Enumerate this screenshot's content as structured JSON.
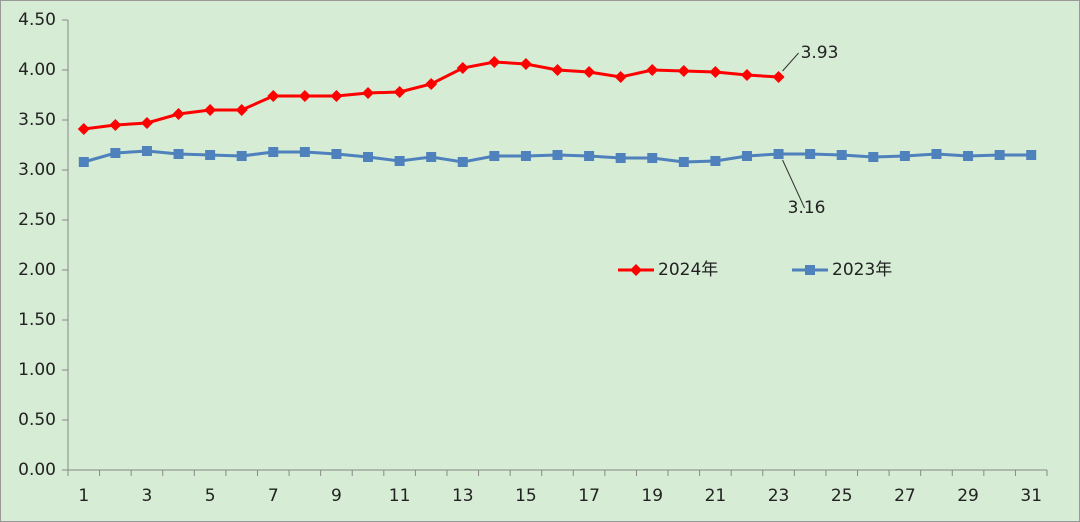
{
  "chart_data": {
    "type": "line",
    "categories": [
      "1",
      null,
      "3",
      null,
      "5",
      null,
      "7",
      null,
      "9",
      null,
      "11",
      null,
      "13",
      null,
      "15",
      null,
      "17",
      null,
      "19",
      null,
      "21",
      null,
      "23",
      null,
      "25",
      null,
      "27",
      null,
      "29",
      null,
      "31"
    ],
    "series": [
      {
        "name": "2024年",
        "color": "#ff0000",
        "marker": "diamond",
        "values": [
          3.41,
          3.45,
          3.47,
          3.56,
          3.6,
          3.6,
          3.74,
          3.74,
          3.74,
          3.77,
          3.78,
          3.86,
          4.02,
          4.08,
          4.06,
          4.0,
          3.98,
          3.93,
          4.0,
          3.99,
          3.98,
          3.95,
          3.93,
          null,
          null,
          null,
          null,
          null,
          null,
          null,
          null
        ]
      },
      {
        "name": "2023年",
        "color": "#4f81bd",
        "marker": "square",
        "values": [
          3.08,
          3.17,
          3.19,
          3.16,
          3.15,
          3.14,
          3.18,
          3.18,
          3.16,
          3.13,
          3.09,
          3.13,
          3.08,
          3.14,
          3.14,
          3.15,
          3.14,
          3.12,
          3.12,
          3.08,
          3.09,
          3.14,
          3.16,
          3.16,
          3.15,
          3.13,
          3.14,
          3.16,
          3.14,
          3.15,
          3.15
        ]
      }
    ],
    "ylim": [
      0,
      4.5
    ],
    "yticks": [
      {
        "value": 0,
        "label": "0.00"
      },
      {
        "value": 0.5,
        "label": "0.50"
      },
      {
        "value": 1,
        "label": "1.00"
      },
      {
        "value": 1.5,
        "label": "1.50"
      },
      {
        "value": 2,
        "label": "2.00"
      },
      {
        "value": 2.5,
        "label": "2.50"
      },
      {
        "value": 3,
        "label": "3.00"
      },
      {
        "value": 3.5,
        "label": "3.50"
      },
      {
        "value": 4,
        "label": "4.00"
      },
      {
        "value": 4.5,
        "label": "4.50"
      }
    ],
    "grid": false
  }
}
